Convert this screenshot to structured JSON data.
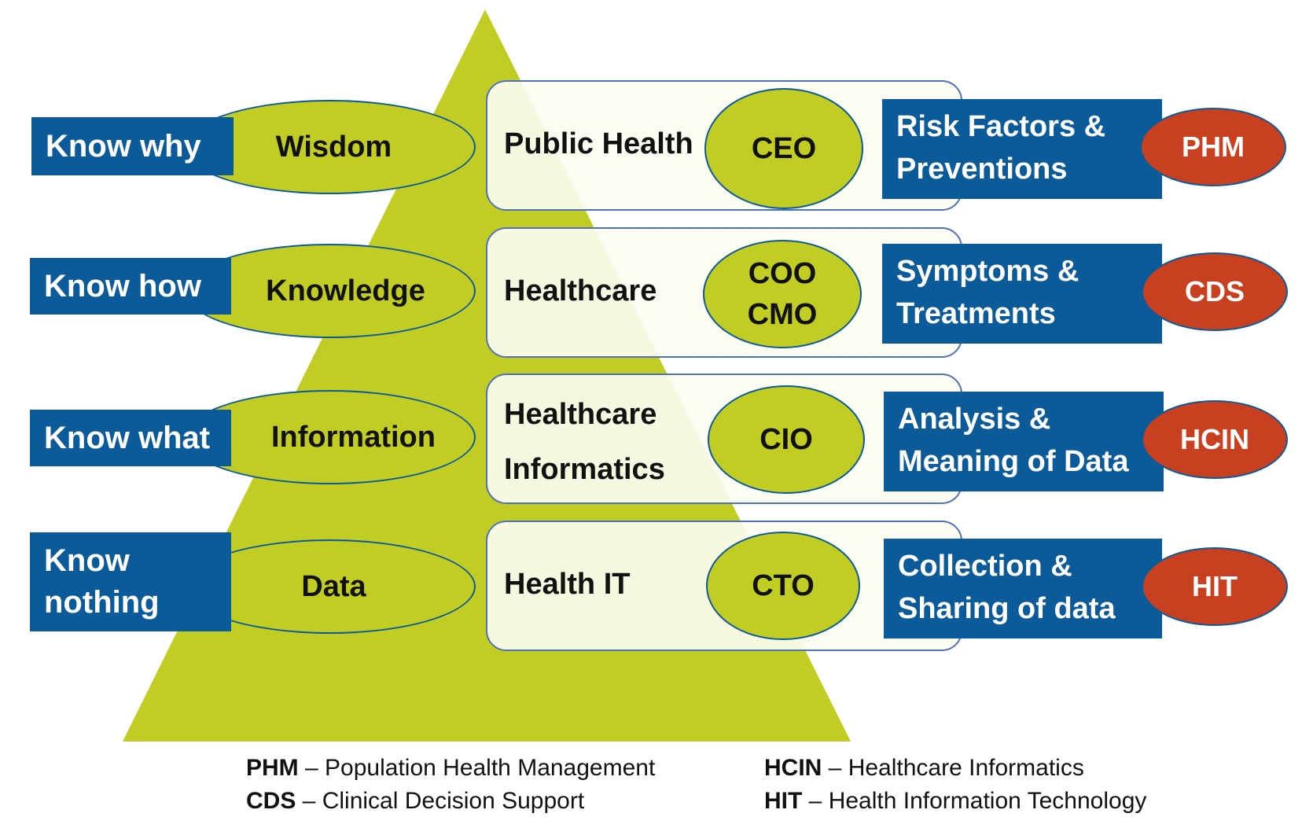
{
  "colors": {
    "pyramid": "#c2cd23",
    "blue_box": "#0b5a9a",
    "red_oval": "#c8401f",
    "outline": "#4f72b8"
  },
  "levels": [
    {
      "know": [
        "Know why"
      ],
      "dikw": "Wisdom",
      "domain": [
        "Public Health"
      ],
      "role": [
        "CEO"
      ],
      "focus": [
        "Risk Factors &",
        "Preventions"
      ],
      "abbr": "PHM"
    },
    {
      "know": [
        "Know how"
      ],
      "dikw": "Knowledge",
      "domain": [
        "Healthcare"
      ],
      "role": [
        "COO",
        "CMO"
      ],
      "focus": [
        "Symptoms &",
        "Treatments"
      ],
      "abbr": "CDS"
    },
    {
      "know": [
        "Know what"
      ],
      "dikw": "Information",
      "domain": [
        "Healthcare",
        "Informatics"
      ],
      "role": [
        "CIO"
      ],
      "focus": [
        "Analysis &",
        "Meaning of Data"
      ],
      "abbr": "HCIN"
    },
    {
      "know": [
        "Know",
        "nothing"
      ],
      "dikw": "Data",
      "domain": [
        "Health IT"
      ],
      "role": [
        "CTO"
      ],
      "focus": [
        "Collection &",
        "Sharing of data"
      ],
      "abbr": "HIT"
    }
  ],
  "legend": [
    {
      "abbr": "PHM",
      "sep": " – ",
      "text": "Population Health Management"
    },
    {
      "abbr": "CDS",
      "sep": " – ",
      "text": "Clinical Decision Support"
    },
    {
      "abbr": "HCIN",
      "sep": " – ",
      "text": "Healthcare Informatics"
    },
    {
      "abbr": "HIT",
      "sep": " – ",
      "text": "Health Information Technology"
    }
  ]
}
